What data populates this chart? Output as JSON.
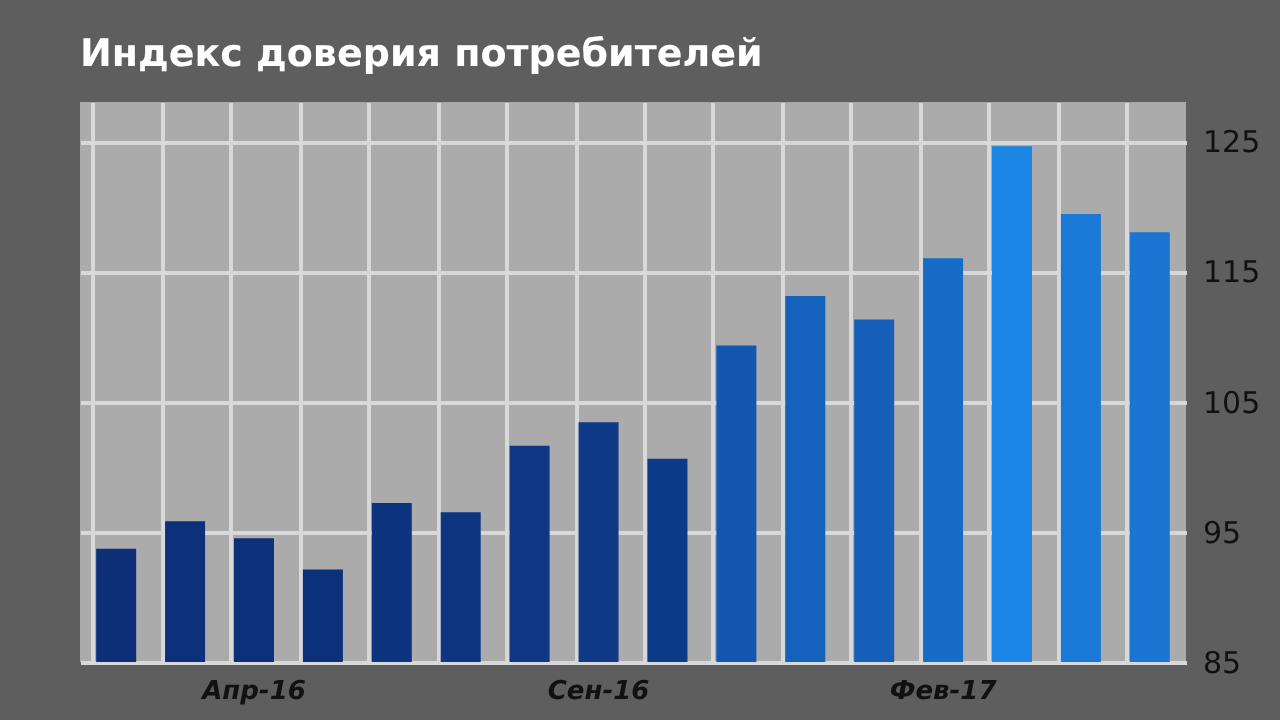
{
  "chart_data": {
    "type": "bar",
    "title": "Индекс доверия потребителей",
    "categories": [
      null,
      null,
      "Апр-16",
      null,
      null,
      null,
      null,
      "Сен-16",
      null,
      null,
      null,
      null,
      "Фев-17",
      null,
      null,
      null
    ],
    "values": [
      93.7,
      95.8,
      94.5,
      92.1,
      97.2,
      96.5,
      101.6,
      103.4,
      100.6,
      109.3,
      113.1,
      111.3,
      116.0,
      124.6,
      119.4,
      118.0
    ],
    "colors": [
      "#0c2f78",
      "#0c3079",
      "#0c307a",
      "#0c317b",
      "#0d347f",
      "#0d3580",
      "#0e3886",
      "#0e3a88",
      "#0e3a8a",
      "#1356b0",
      "#1562bc",
      "#155fb8",
      "#176cc8",
      "#1b86e6",
      "#1a79d6",
      "#1a76d2"
    ],
    "ylim": [
      85,
      128
    ],
    "yticks": [
      85,
      95,
      105,
      115,
      125
    ],
    "grid": true
  }
}
